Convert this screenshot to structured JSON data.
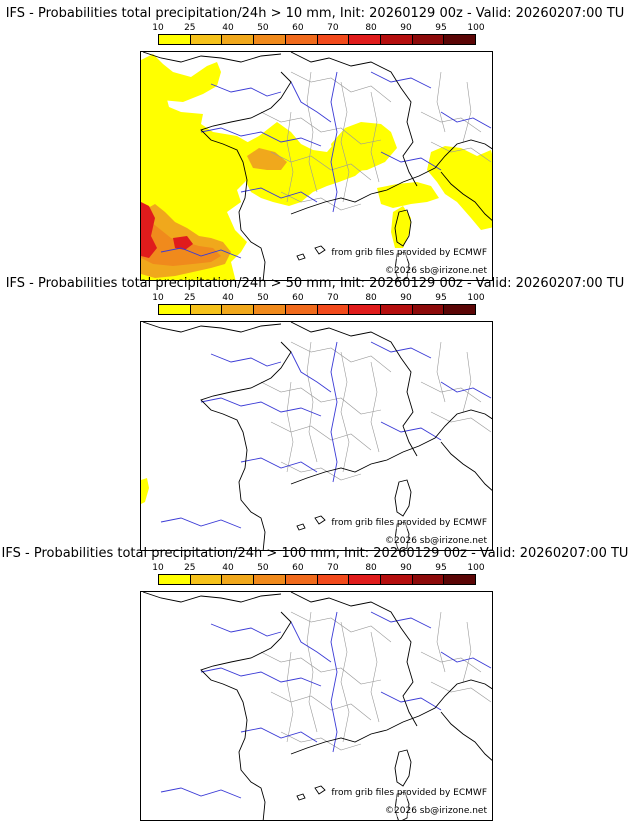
{
  "colors": {
    "scale": [
      "#ffff00",
      "#f5c21b",
      "#f0a81c",
      "#f08a1c",
      "#f06a1c",
      "#f24a1c",
      "#e01c1c",
      "#b40e0e",
      "#8c0a0a",
      "#5a0505"
    ],
    "rivers": "#3b3bd6",
    "borders": "#000000",
    "regions": "#9a9a9a"
  },
  "colorbar": {
    "ticks": [
      "10",
      "25",
      "40",
      "50",
      "60",
      "70",
      "80",
      "90",
      "95",
      "100"
    ]
  },
  "panels": [
    {
      "title": "IFS - Probabilities total precipitation/24h > 10 mm, Init: 20260129 00z - Valid: 20260207:00 TU",
      "threshold_mm": 10,
      "credit_source": "from grib files provided by ECMWF",
      "credit_author": "©2026 sb@irizone.net"
    },
    {
      "title": "IFS - Probabilities total precipitation/24h > 50 mm, Init: 20260129 00z - Valid: 20260207:00 TU",
      "threshold_mm": 50,
      "credit_source": "from grib files provided by ECMWF",
      "credit_author": "©2026 sb@irizone.net"
    },
    {
      "title": "IFS - Probabilities total precipitation/24h > 100 mm, Init: 20260129 00z - Valid: 20260207:00 TU",
      "threshold_mm": 100,
      "credit_source": "from grib files provided by ECMWF",
      "credit_author": "©2026 sb@irizone.net"
    }
  ]
}
